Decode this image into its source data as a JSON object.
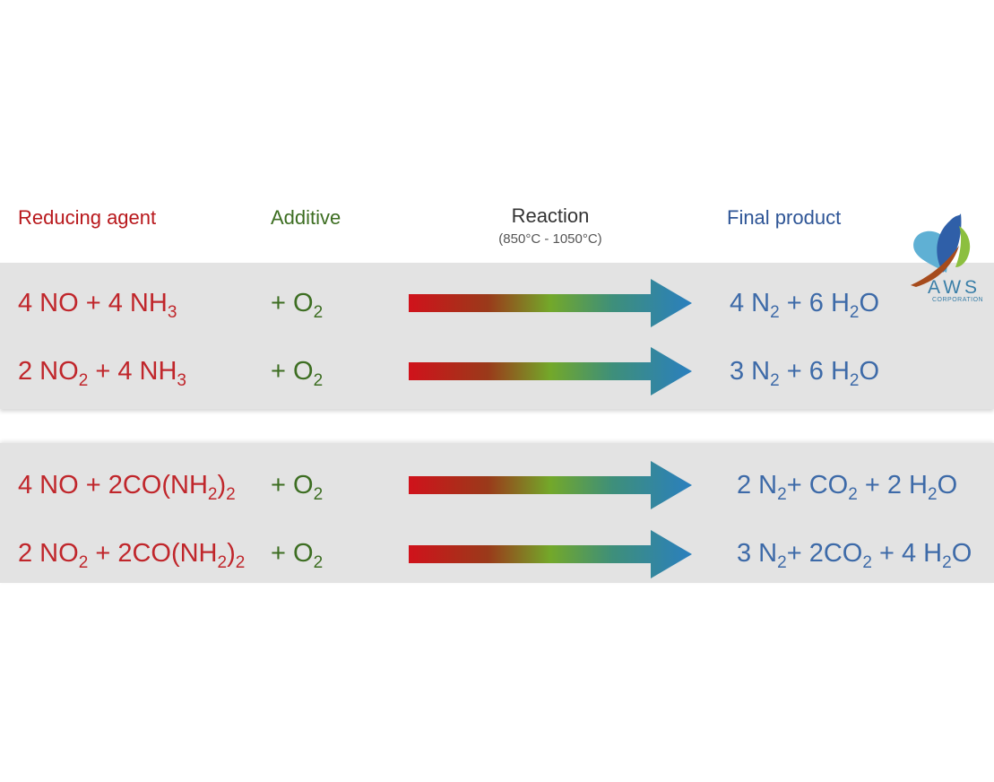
{
  "headers": {
    "reducing_agent": "Reducing agent",
    "additive": "Additive",
    "reaction": "Reaction",
    "reaction_temp": "(850°C - 1050°C)",
    "final_product": "Final product"
  },
  "logo": {
    "name": "AWS",
    "sub": "CORPORATION"
  },
  "colors": {
    "reducing": "#c0262b",
    "additive": "#3d6e22",
    "product": "#3d6aa8",
    "arrow_start": "#d0121b",
    "arrow_mid": "#73a82a",
    "arrow_end": "#2a7fbf"
  },
  "rows": [
    {
      "reactant": [
        [
          "4 NO + 4 NH",
          ""
        ],
        [
          "3",
          "sub"
        ]
      ],
      "additive": [
        [
          "+ O",
          ""
        ],
        [
          "2",
          "sub"
        ]
      ],
      "product": [
        [
          "4 N",
          ""
        ],
        [
          "2",
          "sub"
        ],
        [
          " + 6 H",
          ""
        ],
        [
          "2",
          "sub"
        ],
        [
          "O",
          ""
        ]
      ]
    },
    {
      "reactant": [
        [
          "2 NO",
          ""
        ],
        [
          "2",
          "sub"
        ],
        [
          " + 4 NH",
          ""
        ],
        [
          "3",
          "sub"
        ]
      ],
      "additive": [
        [
          "+ O",
          ""
        ],
        [
          "2",
          "sub"
        ]
      ],
      "product": [
        [
          "3 N",
          ""
        ],
        [
          "2",
          "sub"
        ],
        [
          " + 6 H",
          ""
        ],
        [
          "2",
          "sub"
        ],
        [
          "O",
          ""
        ]
      ]
    },
    {
      "reactant": [
        [
          "4 NO + 2CO(NH",
          ""
        ],
        [
          "2",
          "sub"
        ],
        [
          ")",
          ""
        ],
        [
          "2",
          "sub"
        ]
      ],
      "additive": [
        [
          "+ O",
          ""
        ],
        [
          "2",
          "sub"
        ]
      ],
      "product": [
        [
          "2 N",
          ""
        ],
        [
          "2",
          "sub"
        ],
        [
          "+ CO",
          ""
        ],
        [
          "2",
          "sub"
        ],
        [
          " + 2 H",
          ""
        ],
        [
          "2",
          "sub"
        ],
        [
          "O",
          ""
        ]
      ]
    },
    {
      "reactant": [
        [
          "2 NO",
          ""
        ],
        [
          "2",
          "sub"
        ],
        [
          " + 2CO(NH",
          ""
        ],
        [
          "2",
          "sub"
        ],
        [
          ")",
          ""
        ],
        [
          "2",
          "sub"
        ]
      ],
      "additive": [
        [
          "+ O",
          ""
        ],
        [
          "2",
          "sub"
        ]
      ],
      "product": [
        [
          "3 N",
          ""
        ],
        [
          "2",
          "sub"
        ],
        [
          "+ 2CO",
          ""
        ],
        [
          "2",
          "sub"
        ],
        [
          " + 4 H",
          ""
        ],
        [
          "2",
          "sub"
        ],
        [
          "O",
          ""
        ]
      ]
    }
  ]
}
